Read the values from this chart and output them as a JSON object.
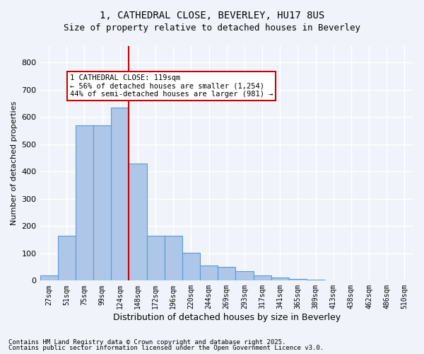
{
  "title1": "1, CATHEDRAL CLOSE, BEVERLEY, HU17 8US",
  "title2": "Size of property relative to detached houses in Beverley",
  "xlabel": "Distribution of detached houses by size in Beverley",
  "ylabel": "Number of detached properties",
  "categories": [
    "27sqm",
    "51sqm",
    "75sqm",
    "99sqm",
    "124sqm",
    "148sqm",
    "172sqm",
    "196sqm",
    "220sqm",
    "244sqm",
    "269sqm",
    "293sqm",
    "317sqm",
    "341sqm",
    "365sqm",
    "389sqm",
    "413sqm",
    "438sqm",
    "462sqm",
    "486sqm",
    "510sqm"
  ],
  "values": [
    20,
    165,
    570,
    570,
    635,
    430,
    165,
    165,
    103,
    55,
    50,
    35,
    18,
    10,
    7,
    4,
    2,
    1,
    0.5,
    0.5,
    0
  ],
  "bar_color": "#aec6e8",
  "bar_edge_color": "#5b9bd5",
  "vline_x": 4.5,
  "vline_color": "#cc0000",
  "annotation_text": "1 CATHEDRAL CLOSE: 119sqm\n← 56% of detached houses are smaller (1,254)\n44% of semi-detached houses are larger (981) →",
  "annotation_box_color": "#ffffff",
  "annotation_box_edge": "#cc0000",
  "ylim": [
    0,
    860
  ],
  "yticks": [
    0,
    100,
    200,
    300,
    400,
    500,
    600,
    700,
    800
  ],
  "bg_color": "#f0f4fa",
  "grid_color": "#ffffff",
  "footer1": "Contains HM Land Registry data © Crown copyright and database right 2025.",
  "footer2": "Contains public sector information licensed under the Open Government Licence v3.0."
}
